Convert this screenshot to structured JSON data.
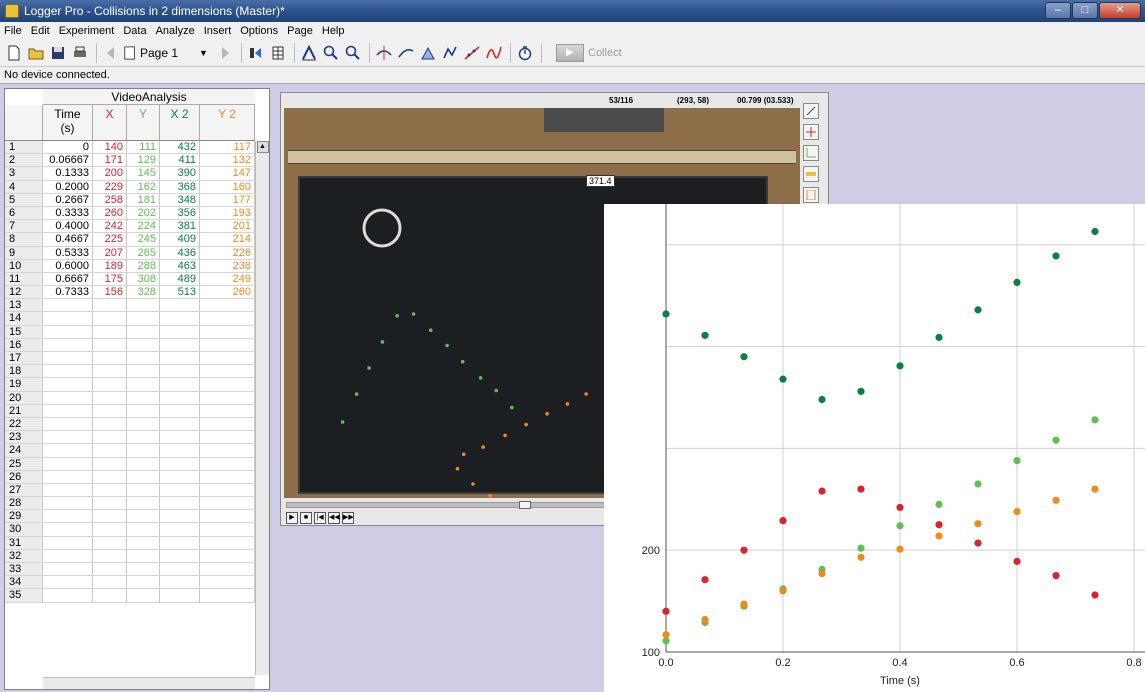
{
  "window": {
    "title": "Logger Pro - Collisions in 2 dimensions (Master)*",
    "controls": [
      "–",
      "□",
      "✕"
    ]
  },
  "menu": [
    "File",
    "Edit",
    "Experiment",
    "Data",
    "Analyze",
    "Insert",
    "Options",
    "Page",
    "Help"
  ],
  "toolbar": {
    "page_label": "Page 1",
    "collect_label": "Collect"
  },
  "status": "No device connected.",
  "table": {
    "group": "VideoAnalysis",
    "columns": [
      {
        "name": "Time",
        "unit": "(s)"
      },
      {
        "name": "X",
        "unit": ""
      },
      {
        "name": "Y",
        "unit": ""
      },
      {
        "name": "X 2",
        "unit": ""
      },
      {
        "name": "Y 2",
        "unit": ""
      }
    ],
    "rows": [
      [
        "1",
        "0",
        "140",
        "111",
        "432",
        "117"
      ],
      [
        "2",
        "0.06667",
        "171",
        "129",
        "411",
        "132"
      ],
      [
        "3",
        "0.1333",
        "200",
        "145",
        "390",
        "147"
      ],
      [
        "4",
        "0.2000",
        "229",
        "162",
        "368",
        "160"
      ],
      [
        "5",
        "0.2667",
        "258",
        "181",
        "348",
        "177"
      ],
      [
        "6",
        "0.3333",
        "260",
        "202",
        "356",
        "193"
      ],
      [
        "7",
        "0.4000",
        "242",
        "224",
        "381",
        "201"
      ],
      [
        "8",
        "0.4667",
        "225",
        "245",
        "409",
        "214"
      ],
      [
        "9",
        "0.5333",
        "207",
        "265",
        "436",
        "226"
      ],
      [
        "10",
        "0.6000",
        "189",
        "288",
        "463",
        "238"
      ],
      [
        "11",
        "0.6667",
        "175",
        "308",
        "489",
        "249"
      ],
      [
        "12",
        "0.7333",
        "156",
        "328",
        "513",
        "260"
      ],
      [
        "13"
      ],
      [
        "14"
      ],
      [
        "15"
      ],
      [
        "16"
      ],
      [
        "17"
      ],
      [
        "18"
      ],
      [
        "19"
      ],
      [
        "20"
      ],
      [
        "21"
      ],
      [
        "22"
      ],
      [
        "23"
      ],
      [
        "24"
      ],
      [
        "25"
      ],
      [
        "26"
      ],
      [
        "27"
      ],
      [
        "28"
      ],
      [
        "29"
      ],
      [
        "30"
      ],
      [
        "31"
      ],
      [
        "32"
      ],
      [
        "33"
      ],
      [
        "34"
      ],
      [
        "35"
      ]
    ]
  },
  "video": {
    "frame": "53/116",
    "coords": "(293, 58)",
    "time": "00.799 (03.533)",
    "readout": "371.4"
  },
  "chart_data": {
    "type": "scatter",
    "x": [
      0,
      0.06667,
      0.1333,
      0.2,
      0.2667,
      0.3333,
      0.4,
      0.4667,
      0.5333,
      0.6,
      0.6667,
      0.7333
    ],
    "series": [
      {
        "name": "X",
        "color": "#d8242c",
        "values": [
          140,
          171,
          200,
          229,
          258,
          260,
          242,
          225,
          207,
          189,
          175,
          156
        ]
      },
      {
        "name": "Y",
        "color": "#62be52",
        "values": [
          111,
          129,
          145,
          162,
          181,
          202,
          224,
          245,
          265,
          288,
          308,
          328
        ]
      },
      {
        "name": "X 2",
        "color": "#0a8040",
        "values": [
          432,
          411,
          390,
          368,
          348,
          356,
          381,
          409,
          436,
          463,
          489,
          513
        ]
      },
      {
        "name": "Y 2",
        "color": "#f08a1e",
        "values": [
          117,
          132,
          147,
          160,
          177,
          193,
          201,
          214,
          226,
          238,
          249,
          260
        ]
      }
    ],
    "xlabel": "Time (s)",
    "xlim": [
      0,
      0.8
    ],
    "ylim": [
      100,
      540
    ],
    "xticks": [
      "0.0",
      "0.2",
      "0.4",
      "0.6",
      "0.8"
    ],
    "yticks": [
      "100",
      "200"
    ],
    "grid": true
  }
}
